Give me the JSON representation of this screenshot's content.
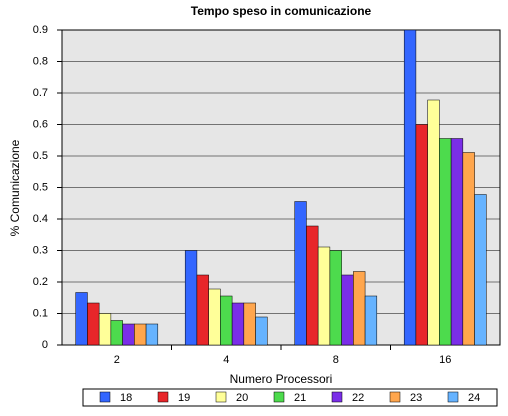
{
  "chart_data": {
    "type": "bar",
    "title": "Tempo speso in comunicazione",
    "x_label": "Numero Processori",
    "y_label": "% Comunicazione",
    "categories": [
      "2",
      "4",
      "8",
      "16"
    ],
    "series": [
      {
        "name": "18",
        "color": "#3366ff",
        "values": [
          0.15,
          0.27,
          0.41,
          0.9
        ]
      },
      {
        "name": "19",
        "color": "#e8262a",
        "values": [
          0.12,
          0.2,
          0.34,
          0.63
        ]
      },
      {
        "name": "20",
        "color": "#ffff99",
        "values": [
          0.09,
          0.16,
          0.28,
          0.7
        ]
      },
      {
        "name": "21",
        "color": "#4ddb4d",
        "values": [
          0.07,
          0.14,
          0.27,
          0.59
        ]
      },
      {
        "name": "22",
        "color": "#7a2ee8",
        "values": [
          0.06,
          0.12,
          0.2,
          0.59
        ]
      },
      {
        "name": "23",
        "color": "#ffa64d",
        "values": [
          0.06,
          0.12,
          0.21,
          0.55
        ]
      },
      {
        "name": "24",
        "color": "#66b3ff",
        "values": [
          0.06,
          0.08,
          0.14,
          0.43
        ]
      }
    ],
    "ylim": [
      0,
      0.9
    ],
    "yticks": [
      0,
      {
        "value": 0.09,
        "label": "0.1"
      },
      {
        "value": 0.18,
        "label": "0.2"
      },
      {
        "value": 0.27,
        "label": "0.3"
      },
      {
        "value": 0.36,
        "label": "0.4"
      },
      {
        "value": 0.45,
        "label": "0.5"
      },
      {
        "value": 0.54,
        "label": "0.5"
      },
      {
        "value": 0.63,
        "label": "0.6"
      },
      {
        "value": 0.72,
        "label": "0.7"
      },
      {
        "value": 0.81,
        "label": "0.8"
      },
      0.9
    ],
    "grid": true
  }
}
